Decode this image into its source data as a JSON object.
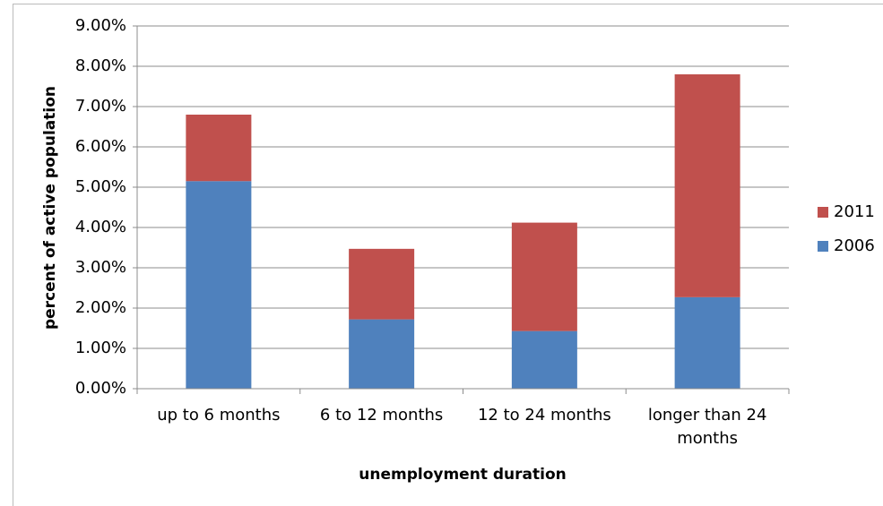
{
  "chart_data": {
    "type": "stacked_bar",
    "x_label": "unemployment duration",
    "y_label": "percent of active population",
    "categories": [
      "up to 6 months",
      "6 to 12 months",
      "12 to 24 months",
      "longer than 24 months"
    ],
    "series": [
      {
        "name": "2006",
        "color": "#4f81bd",
        "values": [
          5.15,
          1.72,
          1.43,
          2.27
        ]
      },
      {
        "name": "2011",
        "color": "#c0504d",
        "values": [
          1.65,
          1.75,
          2.69,
          5.53
        ]
      }
    ],
    "ylim": [
      0,
      9
    ],
    "yticks": [
      {
        "value": 0,
        "label": "0.00%"
      },
      {
        "value": 1,
        "label": "1.00%"
      },
      {
        "value": 2,
        "label": "2.00%"
      },
      {
        "value": 3,
        "label": "3.00%"
      },
      {
        "value": 4,
        "label": "4.00%"
      },
      {
        "value": 5,
        "label": "5.00%"
      },
      {
        "value": 6,
        "label": "6.00%"
      },
      {
        "value": 7,
        "label": "7.00%"
      },
      {
        "value": 8,
        "label": "8.00%"
      },
      {
        "value": 9,
        "label": "9.00%"
      }
    ],
    "grid": true,
    "legend": "right"
  }
}
